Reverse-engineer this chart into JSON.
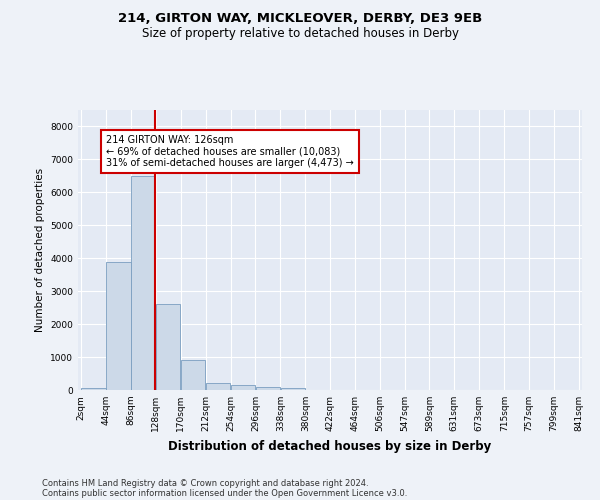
{
  "title1": "214, GIRTON WAY, MICKLEOVER, DERBY, DE3 9EB",
  "title2": "Size of property relative to detached houses in Derby",
  "xlabel": "Distribution of detached houses by size in Derby",
  "ylabel": "Number of detached properties",
  "footnote1": "Contains HM Land Registry data © Crown copyright and database right 2024.",
  "footnote2": "Contains public sector information licensed under the Open Government Licence v3.0.",
  "annotation_line1": "214 GIRTON WAY: 126sqm",
  "annotation_line2": "← 69% of detached houses are smaller (10,083)",
  "annotation_line3": "31% of semi-detached houses are larger (4,473) →",
  "bar_color": "#ccd9e8",
  "bar_edge_color": "#7a9ec0",
  "vline_color": "#cc0000",
  "annotation_box_edge": "#cc0000",
  "bin_labels": [
    "2sqm",
    "44sqm",
    "86sqm",
    "128sqm",
    "170sqm",
    "212sqm",
    "254sqm",
    "296sqm",
    "338sqm",
    "380sqm",
    "422sqm",
    "464sqm",
    "506sqm",
    "547sqm",
    "589sqm",
    "631sqm",
    "673sqm",
    "715sqm",
    "757sqm",
    "799sqm",
    "841sqm"
  ],
  "bin_edges": [
    2,
    44,
    86,
    128,
    170,
    212,
    254,
    296,
    338,
    380,
    422,
    464,
    506,
    547,
    589,
    631,
    673,
    715,
    757,
    799,
    841
  ],
  "bar_heights": [
    50,
    3900,
    6500,
    2600,
    900,
    200,
    150,
    100,
    55,
    0,
    0,
    0,
    0,
    0,
    0,
    0,
    0,
    0,
    0,
    0
  ],
  "vline_x": 126,
  "ylim": [
    0,
    8500
  ],
  "yticks": [
    0,
    1000,
    2000,
    3000,
    4000,
    5000,
    6000,
    7000,
    8000
  ],
  "background_color": "#eef2f8",
  "plot_background": "#e4eaf4",
  "title1_fontsize": 9.5,
  "title2_fontsize": 8.5,
  "ylabel_fontsize": 7.5,
  "xlabel_fontsize": 8.5,
  "tick_fontsize": 6.5,
  "annot_fontsize": 7.0,
  "footnote_fontsize": 6.0
}
